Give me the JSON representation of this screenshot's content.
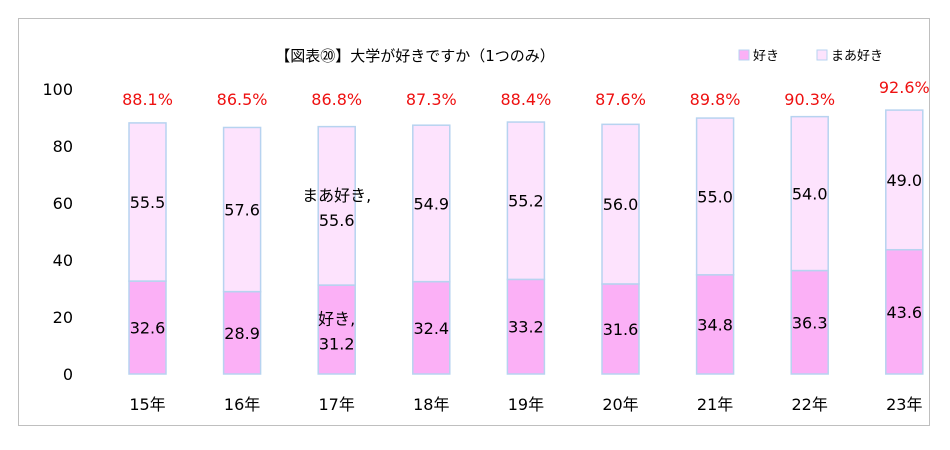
{
  "chart_data": {
    "type": "bar",
    "stacked": true,
    "title": "【図表⑳】大学が好きですか（1つのみ）",
    "categories": [
      "15年",
      "16年",
      "17年",
      "18年",
      "19年",
      "20年",
      "21年",
      "22年",
      "23年"
    ],
    "series": [
      {
        "name": "好き",
        "values": [
          32.6,
          28.9,
          31.2,
          32.4,
          33.2,
          31.6,
          34.8,
          36.3,
          43.6
        ],
        "color": "#fbb0f6"
      },
      {
        "name": "まあ好き",
        "values": [
          55.5,
          57.6,
          55.6,
          54.9,
          55.2,
          56.0,
          55.0,
          54.0,
          49.0
        ],
        "color": "#fde3fd"
      }
    ],
    "totals": [
      "88.1%",
      "86.5%",
      "86.8%",
      "87.3%",
      "88.4%",
      "87.6%",
      "89.8%",
      "90.3%",
      "92.6%"
    ],
    "label_prefix_category": "17年",
    "ylim": [
      0,
      100
    ],
    "yticks": [
      0,
      20,
      40,
      60,
      80,
      100
    ],
    "grid": false,
    "legend_position": "top-right",
    "bar_border_color": "#b7d3f0",
    "total_color": "#ee1111"
  }
}
